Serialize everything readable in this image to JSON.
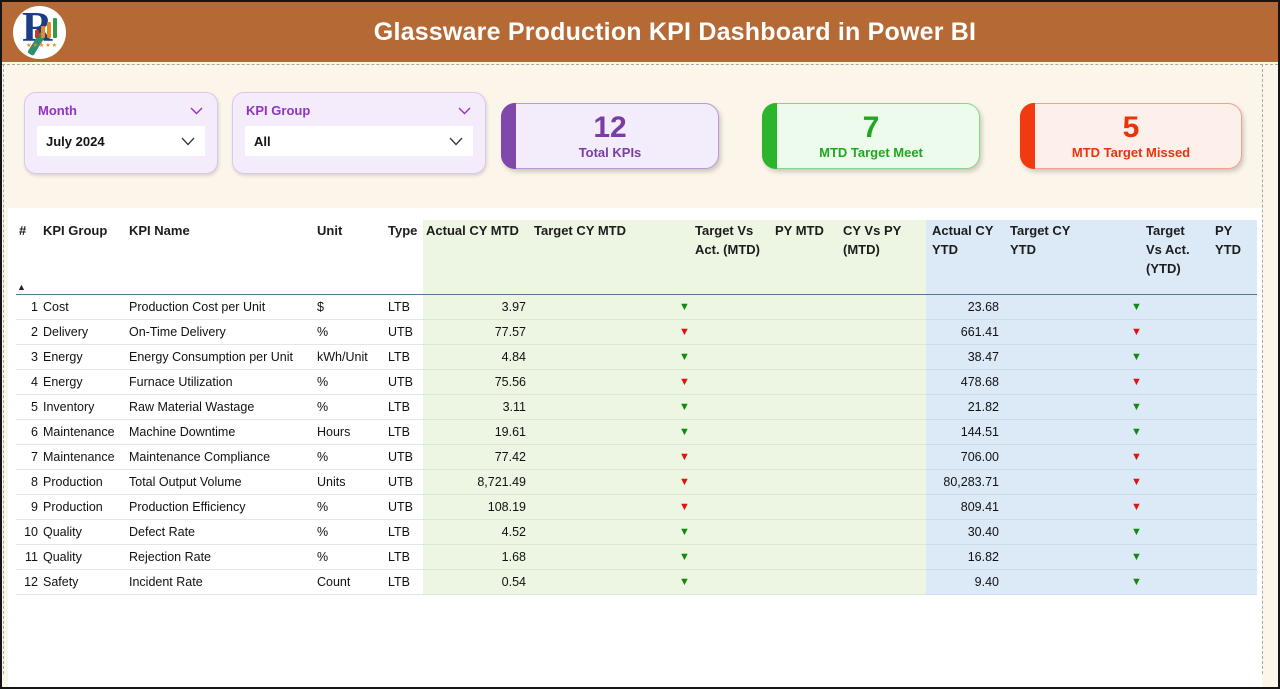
{
  "header": {
    "title": "Glassware Production KPI Dashboard in Power BI",
    "background_color": "#b56a35"
  },
  "logo": {
    "letter": "R",
    "stars": "★★★★★"
  },
  "filters": {
    "month": {
      "label": "Month",
      "value": "July 2024"
    },
    "kpi_group": {
      "label": "KPI Group",
      "value": "All"
    }
  },
  "kpi_cards": [
    {
      "id": "total-kpis",
      "value": "12",
      "label": "Total KPIs",
      "accent": "#8048ab",
      "fill": "#f3ecfa",
      "border": "#b79ad6",
      "text": "#7a3da6"
    },
    {
      "id": "mtd-target-meet",
      "value": "7",
      "label": "MTD Target Meet",
      "accent": "#2cb52c",
      "fill": "#edfbed",
      "border": "#84d884",
      "text": "#1fa81f"
    },
    {
      "id": "mtd-target-missed",
      "value": "5",
      "label": "MTD Target Missed",
      "accent": "#f23a10",
      "fill": "#fdefe9",
      "border": "#f6a184",
      "text": "#e9330a"
    }
  ],
  "table": {
    "sort_indicator": "▲",
    "arrow_glyph": "▼",
    "status_colors": {
      "meet": "#118a11",
      "miss": "#e01111"
    },
    "section_colors": {
      "mtd": "#edf6e2",
      "ytd": "#dceaf8"
    },
    "columns": [
      "#",
      "KPI Group",
      "KPI Name",
      "Unit",
      "Type",
      "Actual CY MTD",
      "Target CY MTD",
      "Target Vs Act. (MTD)",
      "PY MTD",
      "CY Vs PY (MTD)",
      "Actual CY YTD",
      "Target CY YTD",
      "Target Vs Act. (YTD)",
      "PY YTD"
    ],
    "rows": [
      {
        "num": "1",
        "group": "Cost",
        "name": "Production Cost per Unit",
        "unit": "$",
        "type": "LTB",
        "actual_mtd": "3.97",
        "target_mtd": "",
        "tva_mtd": "meet",
        "py_mtd": "",
        "cy_vs_py_mtd": "",
        "actual_ytd": "23.68",
        "target_ytd": "",
        "tva_ytd": "meet",
        "py_ytd": ""
      },
      {
        "num": "2",
        "group": "Delivery",
        "name": "On-Time Delivery",
        "unit": "%",
        "type": "UTB",
        "actual_mtd": "77.57",
        "target_mtd": "",
        "tva_mtd": "miss",
        "py_mtd": "",
        "cy_vs_py_mtd": "",
        "actual_ytd": "661.41",
        "target_ytd": "",
        "tva_ytd": "miss",
        "py_ytd": ""
      },
      {
        "num": "3",
        "group": "Energy",
        "name": "Energy Consumption per Unit",
        "unit": "kWh/Unit",
        "type": "LTB",
        "actual_mtd": "4.84",
        "target_mtd": "",
        "tva_mtd": "meet",
        "py_mtd": "",
        "cy_vs_py_mtd": "",
        "actual_ytd": "38.47",
        "target_ytd": "",
        "tva_ytd": "meet",
        "py_ytd": ""
      },
      {
        "num": "4",
        "group": "Energy",
        "name": "Furnace Utilization",
        "unit": "%",
        "type": "UTB",
        "actual_mtd": "75.56",
        "target_mtd": "",
        "tva_mtd": "miss",
        "py_mtd": "",
        "cy_vs_py_mtd": "",
        "actual_ytd": "478.68",
        "target_ytd": "",
        "tva_ytd": "miss",
        "py_ytd": ""
      },
      {
        "num": "5",
        "group": "Inventory",
        "name": "Raw Material Wastage",
        "unit": "%",
        "type": "LTB",
        "actual_mtd": "3.11",
        "target_mtd": "",
        "tva_mtd": "meet",
        "py_mtd": "",
        "cy_vs_py_mtd": "",
        "actual_ytd": "21.82",
        "target_ytd": "",
        "tva_ytd": "meet",
        "py_ytd": ""
      },
      {
        "num": "6",
        "group": "Maintenance",
        "name": "Machine Downtime",
        "unit": "Hours",
        "type": "LTB",
        "actual_mtd": "19.61",
        "target_mtd": "",
        "tva_mtd": "meet",
        "py_mtd": "",
        "cy_vs_py_mtd": "",
        "actual_ytd": "144.51",
        "target_ytd": "",
        "tva_ytd": "meet",
        "py_ytd": ""
      },
      {
        "num": "7",
        "group": "Maintenance",
        "name": "Maintenance Compliance",
        "unit": "%",
        "type": "UTB",
        "actual_mtd": "77.42",
        "target_mtd": "",
        "tva_mtd": "miss",
        "py_mtd": "",
        "cy_vs_py_mtd": "",
        "actual_ytd": "706.00",
        "target_ytd": "",
        "tva_ytd": "miss",
        "py_ytd": ""
      },
      {
        "num": "8",
        "group": "Production",
        "name": "Total Output Volume",
        "unit": "Units",
        "type": "UTB",
        "actual_mtd": "8,721.49",
        "target_mtd": "",
        "tva_mtd": "miss",
        "py_mtd": "",
        "cy_vs_py_mtd": "",
        "actual_ytd": "80,283.71",
        "target_ytd": "",
        "tva_ytd": "miss",
        "py_ytd": ""
      },
      {
        "num": "9",
        "group": "Production",
        "name": "Production Efficiency",
        "unit": "%",
        "type": "UTB",
        "actual_mtd": "108.19",
        "target_mtd": "",
        "tva_mtd": "miss",
        "py_mtd": "",
        "cy_vs_py_mtd": "",
        "actual_ytd": "809.41",
        "target_ytd": "",
        "tva_ytd": "miss",
        "py_ytd": ""
      },
      {
        "num": "10",
        "group": "Quality",
        "name": "Defect Rate",
        "unit": "%",
        "type": "LTB",
        "actual_mtd": "4.52",
        "target_mtd": "",
        "tva_mtd": "meet",
        "py_mtd": "",
        "cy_vs_py_mtd": "",
        "actual_ytd": "30.40",
        "target_ytd": "",
        "tva_ytd": "meet",
        "py_ytd": ""
      },
      {
        "num": "11",
        "group": "Quality",
        "name": "Rejection Rate",
        "unit": "%",
        "type": "LTB",
        "actual_mtd": "1.68",
        "target_mtd": "",
        "tva_mtd": "meet",
        "py_mtd": "",
        "cy_vs_py_mtd": "",
        "actual_ytd": "16.82",
        "target_ytd": "",
        "tva_ytd": "meet",
        "py_ytd": ""
      },
      {
        "num": "12",
        "group": "Safety",
        "name": "Incident Rate",
        "unit": "Count",
        "type": "LTB",
        "actual_mtd": "0.54",
        "target_mtd": "",
        "tva_mtd": "meet",
        "py_mtd": "",
        "cy_vs_py_mtd": "",
        "actual_ytd": "9.40",
        "target_ytd": "",
        "tva_ytd": "meet",
        "py_ytd": ""
      }
    ]
  }
}
